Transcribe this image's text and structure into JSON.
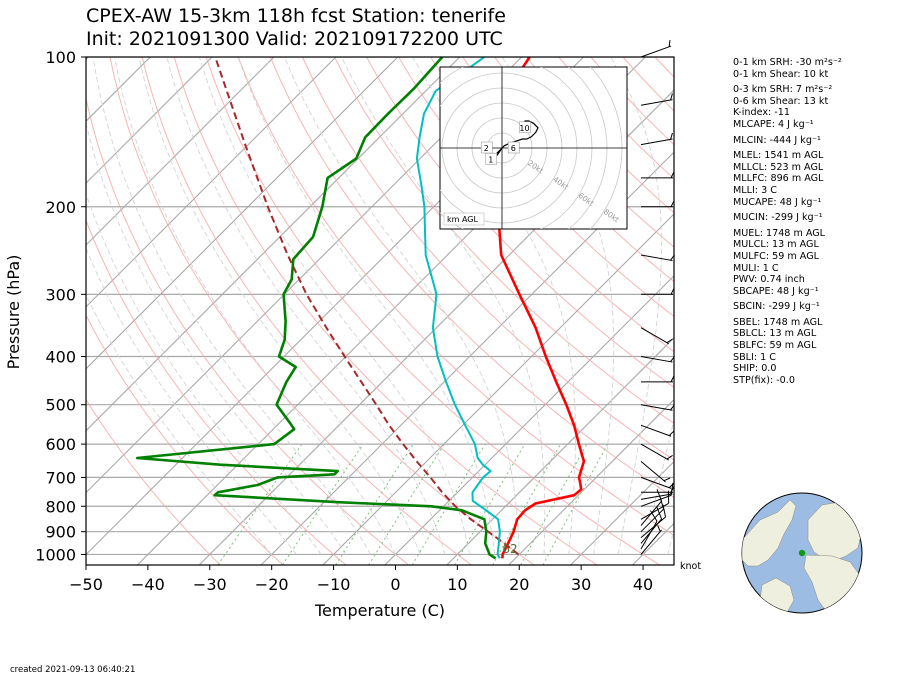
{
  "header": {
    "title_line1": "CPEX-AW 15-3km  118h fcst  Station: tenerife",
    "title_line2": "Init: 2021091300  Valid: 202109172200 UTC"
  },
  "footer": {
    "created": "created 2021-09-13 06:40:21"
  },
  "indices": [
    {
      "text": "0-1 km SRH: -30 m²s⁻²",
      "gap": false
    },
    {
      "text": "0-1 km Shear: 10 kt",
      "gap": false
    },
    {
      "text": "0-3 km SRH: 7 m²s⁻²",
      "gap": true
    },
    {
      "text": "0-6 km Shear: 13 kt",
      "gap": false
    },
    {
      "text": "K-index: -11",
      "gap": false
    },
    {
      "text": "MLCAPE: 4 J kg⁻¹",
      "gap": false
    },
    {
      "text": "MLCIN: -444 J kg⁻¹",
      "gap": true
    },
    {
      "text": "MLEL: 1541 m AGL",
      "gap": true
    },
    {
      "text": "MLLCL: 523 m AGL",
      "gap": false
    },
    {
      "text": "MLLFC: 896 m AGL",
      "gap": false
    },
    {
      "text": "MLLI: 3 C",
      "gap": false
    },
    {
      "text": "MUCAPE: 48 J kg⁻¹",
      "gap": false
    },
    {
      "text": "MUCIN: -299 J kg⁻¹",
      "gap": true
    },
    {
      "text": "MUEL: 1748 m AGL",
      "gap": true
    },
    {
      "text": "MULCL: 13 m AGL",
      "gap": false
    },
    {
      "text": "MULFC: 59 m AGL",
      "gap": false
    },
    {
      "text": "MULI: 1 C",
      "gap": false
    },
    {
      "text": "PWV: 0.74 inch",
      "gap": false
    },
    {
      "text": "SBCAPE: 48 J kg⁻¹",
      "gap": false
    },
    {
      "text": "SBCIN: -299 J kg⁻¹",
      "gap": true
    },
    {
      "text": "SBEL: 1748 m AGL",
      "gap": true
    },
    {
      "text": "SBLCL: 13 m AGL",
      "gap": false
    },
    {
      "text": "SBLFC: 59 m AGL",
      "gap": false
    },
    {
      "text": "SBLI: 1 C",
      "gap": false
    },
    {
      "text": "SHIP: 0.0",
      "gap": false
    },
    {
      "text": "STP(fix): -0.0",
      "gap": false
    }
  ],
  "chart_data": {
    "type": "skew-t",
    "xlabel": "Temperature (C)",
    "ylabel": "Pressure (hPa)",
    "xlim": [
      -50,
      45
    ],
    "ylim": [
      1050,
      100
    ],
    "x_ticks": [
      -50,
      -40,
      -30,
      -20,
      -10,
      0,
      10,
      20,
      30,
      40
    ],
    "y_ticks": [
      100,
      200,
      300,
      400,
      500,
      600,
      700,
      800,
      900,
      1000
    ],
    "surface_label": "62",
    "wind_unit_label": "knot",
    "colors": {
      "temperature": "#ff0000",
      "dewpoint": "#008000",
      "wetbulb": "#00bfbf",
      "parcel": "#a52a2a",
      "isotherm": "#a9a9a9",
      "dry_adiabat": "#f5a3a3",
      "moist_adiabat": "#d3d3d3",
      "mixing_ratio": "#7fbf7f"
    },
    "series": [
      {
        "name": "temperature",
        "points": [
          [
            1018,
            17.9
          ],
          [
            1000,
            17.3
          ],
          [
            950,
            16.4
          ],
          [
            900,
            15.4
          ],
          [
            850,
            14.0
          ],
          [
            815,
            13.8
          ],
          [
            790,
            14.4
          ],
          [
            760,
            19.3
          ],
          [
            740,
            19.5
          ],
          [
            720,
            18.4
          ],
          [
            700,
            17.2
          ],
          [
            650,
            15.4
          ],
          [
            600,
            11.8
          ],
          [
            550,
            8.0
          ],
          [
            500,
            3.4
          ],
          [
            450,
            -1.9
          ],
          [
            400,
            -7.7
          ],
          [
            350,
            -14.0
          ],
          [
            300,
            -22.0
          ],
          [
            250,
            -31.3
          ],
          [
            220,
            -36.1
          ],
          [
            200,
            -40.1
          ],
          [
            180,
            -44.7
          ],
          [
            160,
            -50.1
          ],
          [
            145,
            -54.4
          ],
          [
            130,
            -56.8
          ],
          [
            117,
            -58.5
          ],
          [
            106,
            -58.0
          ],
          [
            100,
            -58.7
          ]
        ]
      },
      {
        "name": "dewpoint",
        "points": [
          [
            1018,
            16.8
          ],
          [
            1000,
            15.2
          ],
          [
            950,
            12.7
          ],
          [
            900,
            11.0
          ],
          [
            850,
            8.7
          ],
          [
            815,
            3.6
          ],
          [
            800,
            -2.0
          ],
          [
            785,
            -17.7
          ],
          [
            760,
            -38.8
          ],
          [
            750,
            -38.7
          ],
          [
            725,
            -33.5
          ],
          [
            700,
            -31.5
          ],
          [
            690,
            -22.8
          ],
          [
            680,
            -22.8
          ],
          [
            660,
            -42.8
          ],
          [
            640,
            -57.3
          ],
          [
            600,
            -37.4
          ],
          [
            560,
            -36.6
          ],
          [
            545,
            -38.2
          ],
          [
            500,
            -43.4
          ],
          [
            450,
            -45.5
          ],
          [
            420,
            -46.4
          ],
          [
            400,
            -50.8
          ],
          [
            370,
            -52.6
          ],
          [
            340,
            -55.4
          ],
          [
            300,
            -60.1
          ],
          [
            280,
            -61.2
          ],
          [
            255,
            -64.2
          ],
          [
            230,
            -64.6
          ],
          [
            200,
            -68.0
          ],
          [
            175,
            -71.8
          ],
          [
            160,
            -70.3
          ],
          [
            145,
            -72.3
          ],
          [
            130,
            -72.4
          ],
          [
            116,
            -72.3
          ],
          [
            100,
            -72.8
          ]
        ]
      },
      {
        "name": "wetbulb",
        "points": [
          [
            1018,
            17.5
          ],
          [
            1000,
            16.5
          ],
          [
            950,
            14.9
          ],
          [
            900,
            13.2
          ],
          [
            850,
            10.9
          ],
          [
            815,
            7.5
          ],
          [
            780,
            3.8
          ],
          [
            750,
            2.4
          ],
          [
            700,
            1.7
          ],
          [
            680,
            1.9
          ],
          [
            660,
            -0.4
          ],
          [
            640,
            -2.3
          ],
          [
            600,
            -5.0
          ],
          [
            550,
            -9.6
          ],
          [
            500,
            -14.6
          ],
          [
            450,
            -19.7
          ],
          [
            400,
            -25.2
          ],
          [
            350,
            -30.6
          ],
          [
            300,
            -35.4
          ],
          [
            250,
            -43.5
          ],
          [
            220,
            -48.1
          ],
          [
            200,
            -51.5
          ],
          [
            180,
            -55.7
          ],
          [
            160,
            -60.5
          ],
          [
            145,
            -63.5
          ],
          [
            130,
            -66.6
          ],
          [
            117,
            -68.4
          ],
          [
            106,
            -66.8
          ],
          [
            100,
            -66.0
          ]
        ]
      },
      {
        "name": "parcel",
        "points": [
          [
            1000,
            19.9
          ],
          [
            950,
            15.8
          ],
          [
            900,
            11.3
          ],
          [
            850,
            6.5
          ],
          [
            800,
            1.9
          ],
          [
            750,
            -2.5
          ],
          [
            700,
            -6.8
          ],
          [
            650,
            -11.6
          ],
          [
            600,
            -16.6
          ],
          [
            550,
            -21.9
          ],
          [
            500,
            -27.3
          ],
          [
            450,
            -33.4
          ],
          [
            400,
            -40.2
          ],
          [
            350,
            -47.8
          ],
          [
            300,
            -56.4
          ],
          [
            250,
            -65.8
          ],
          [
            200,
            -76.8
          ],
          [
            150,
            -90.5
          ],
          [
            100,
            -109.5
          ]
        ]
      }
    ],
    "wind_barbs_knots": [
      {
        "p": 1000,
        "speed": 5,
        "dir": 40
      },
      {
        "p": 975,
        "speed": 10,
        "dir": 30
      },
      {
        "p": 950,
        "speed": 10,
        "dir": 40
      },
      {
        "p": 925,
        "speed": 10,
        "dir": 50
      },
      {
        "p": 900,
        "speed": 10,
        "dir": 45
      },
      {
        "p": 875,
        "speed": 10,
        "dir": 40
      },
      {
        "p": 850,
        "speed": 10,
        "dir": 60
      },
      {
        "p": 800,
        "speed": 10,
        "dir": 70
      },
      {
        "p": 775,
        "speed": 5,
        "dir": 80
      },
      {
        "p": 750,
        "speed": 5,
        "dir": 90
      },
      {
        "p": 700,
        "speed": 5,
        "dir": 110
      },
      {
        "p": 650,
        "speed": 5,
        "dir": 130
      },
      {
        "p": 600,
        "speed": 5,
        "dir": 120
      },
      {
        "p": 550,
        "speed": 5,
        "dir": 110
      },
      {
        "p": 500,
        "speed": 5,
        "dir": 100
      },
      {
        "p": 450,
        "speed": 5,
        "dir": 90
      },
      {
        "p": 400,
        "speed": 5,
        "dir": 100
      },
      {
        "p": 350,
        "speed": 5,
        "dir": 120
      },
      {
        "p": 300,
        "speed": 5,
        "dir": 90
      },
      {
        "p": 250,
        "speed": 5,
        "dir": 100
      },
      {
        "p": 200,
        "speed": 5,
        "dir": 90
      },
      {
        "p": 175,
        "speed": 5,
        "dir": 90
      },
      {
        "p": 150,
        "speed": 5,
        "dir": 80
      },
      {
        "p": 125,
        "speed": 5,
        "dir": 80
      },
      {
        "p": 100,
        "speed": 5,
        "dir": 70
      }
    ],
    "hodograph": {
      "speed_ring_labels": [
        "20kt",
        "40kt",
        "60kt",
        "80kt"
      ],
      "height_labels": [
        "1",
        "2",
        "6",
        "10"
      ],
      "corner_label": "km AGL",
      "trace_knots": [
        [
          0,
          0
        ],
        [
          -2,
          -3
        ],
        [
          -4,
          -5
        ],
        [
          -5,
          -5
        ],
        [
          -3,
          -3
        ],
        [
          -1,
          -1
        ],
        [
          0,
          0
        ],
        [
          1,
          1
        ],
        [
          3,
          2
        ],
        [
          6,
          3
        ],
        [
          9,
          4
        ],
        [
          11,
          4
        ],
        [
          13,
          5
        ],
        [
          15,
          7
        ],
        [
          16,
          9
        ],
        [
          14,
          11
        ],
        [
          12,
          12
        ],
        [
          10,
          12
        ]
      ],
      "marker_points": [
        {
          "label": "1",
          "u": -5,
          "v": -5
        },
        {
          "label": "2",
          "u": -7,
          "v": 0
        },
        {
          "label": "6",
          "u": 5,
          "v": 0
        },
        {
          "label": "10",
          "u": 10,
          "v": 9
        }
      ]
    },
    "locator_map": {
      "description": "globe centered over North Atlantic",
      "marker_lat": 28.3,
      "marker_lon": -16.5,
      "ocean_color": "#9cbce4",
      "land_color": "#efefdf",
      "marker_color": "#119a11"
    }
  }
}
